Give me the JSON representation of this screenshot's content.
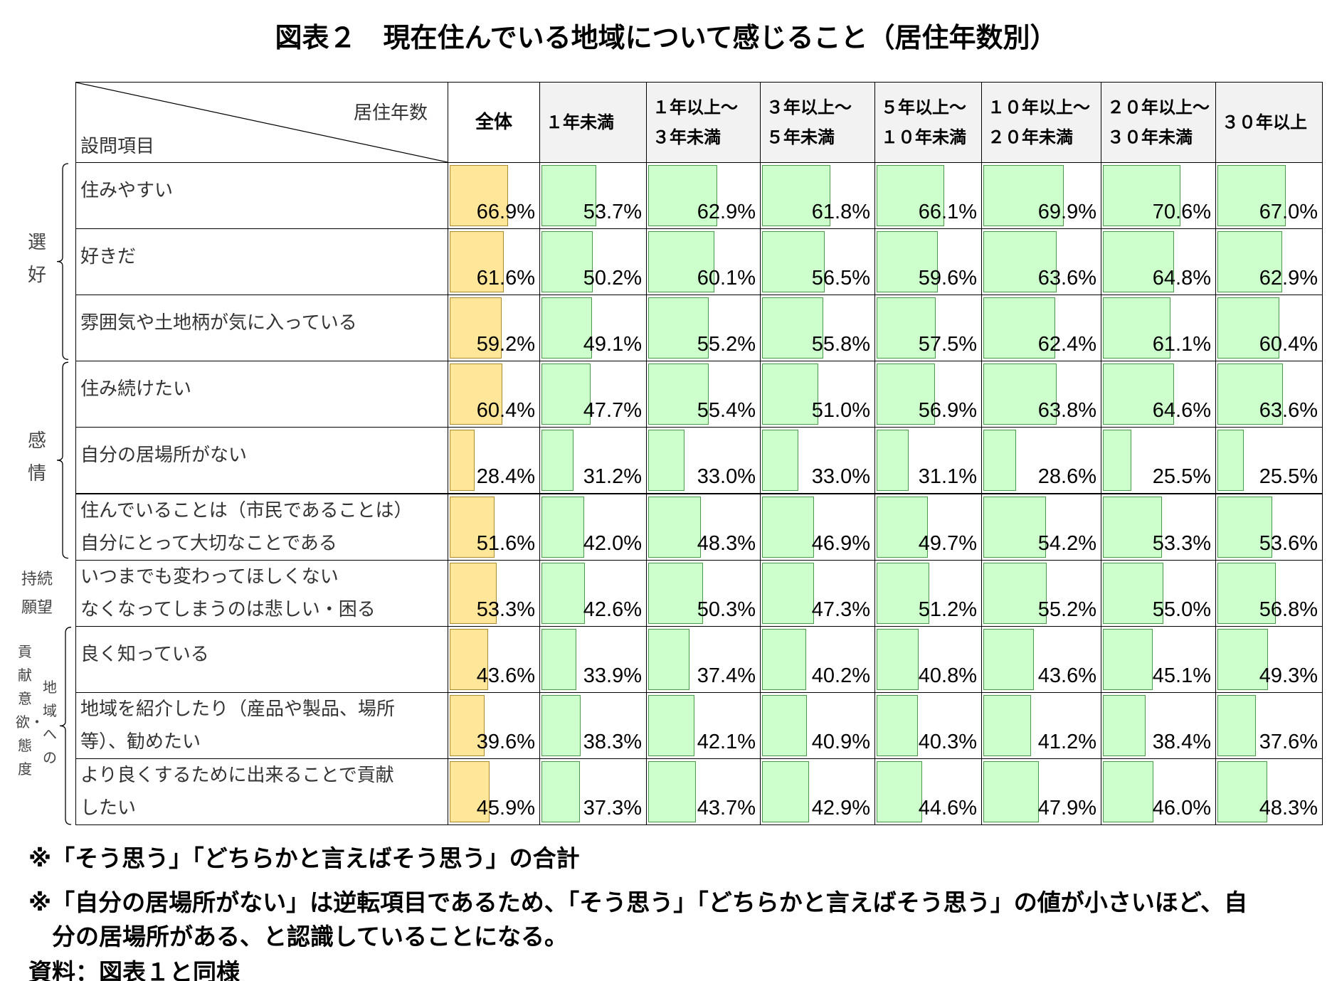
{
  "title": "図表２　現在住んでいる地域について感じること（居住年数別）",
  "chart_data": {
    "type": "table",
    "corner": {
      "top": "居住年数",
      "bottom": "設問項目"
    },
    "columns": [
      [
        "全体"
      ],
      [
        "１年未満"
      ],
      [
        "１年以上～",
        "３年未満"
      ],
      [
        "３年以上～",
        "５年未満"
      ],
      [
        "５年以上～",
        "１０年未満"
      ],
      [
        "１０年以上～",
        "２０年未満"
      ],
      [
        "２０年以上～",
        "３０年未満"
      ],
      [
        "３０年以上"
      ]
    ],
    "groups": [
      {
        "label": "選好",
        "rows": [
          0,
          2
        ]
      },
      {
        "label": "感情",
        "rows": [
          3,
          5
        ]
      },
      {
        "label": "持続願望",
        "rows": [
          6,
          6
        ]
      },
      {
        "label": "貢献意欲・態度",
        "sub": "地域への",
        "rows": [
          7,
          9
        ]
      }
    ],
    "rows": [
      {
        "label": [
          "住みやすい"
        ],
        "values": [
          66.9,
          53.7,
          62.9,
          61.8,
          66.1,
          69.9,
          70.6,
          67.0
        ]
      },
      {
        "label": [
          "好きだ"
        ],
        "values": [
          61.6,
          50.2,
          60.1,
          56.5,
          59.6,
          63.6,
          64.8,
          62.9
        ]
      },
      {
        "label": [
          "雰囲気や土地柄が気に入っている"
        ],
        "values": [
          59.2,
          49.1,
          55.2,
          55.8,
          57.5,
          62.4,
          61.1,
          60.4
        ]
      },
      {
        "label": [
          "住み続けたい"
        ],
        "values": [
          60.4,
          47.7,
          55.4,
          51.0,
          56.9,
          63.8,
          64.6,
          63.6
        ]
      },
      {
        "label": [
          "自分の居場所がない"
        ],
        "values": [
          28.4,
          31.2,
          33.0,
          33.0,
          31.1,
          28.6,
          25.5,
          25.5
        ]
      },
      {
        "label": [
          "住んでいることは（市民であることは）",
          "自分にとって大切なことである"
        ],
        "values": [
          51.6,
          42.0,
          48.3,
          46.9,
          49.7,
          54.2,
          53.3,
          53.6
        ]
      },
      {
        "label": [
          "いつまでも変わってほしくない",
          "なくなってしまうのは悲しい・困る"
        ],
        "values": [
          53.3,
          42.6,
          50.3,
          47.3,
          51.2,
          55.2,
          55.0,
          56.8
        ]
      },
      {
        "label": [
          "良く知っている"
        ],
        "values": [
          43.6,
          33.9,
          37.4,
          40.2,
          40.8,
          43.6,
          45.1,
          49.3
        ]
      },
      {
        "label": [
          "地域を紹介したり（産品や製品、場所",
          "等）、勧めたい"
        ],
        "values": [
          39.6,
          38.3,
          42.1,
          40.9,
          40.3,
          41.2,
          38.4,
          37.6
        ]
      },
      {
        "label": [
          "より良くするために出来ることで貢献",
          "したい"
        ],
        "values": [
          45.9,
          37.3,
          43.7,
          42.9,
          44.6,
          47.9,
          46.0,
          48.3
        ]
      }
    ],
    "unit": "%",
    "colors": {
      "all": "#ffe699",
      "group": "#ccffcc"
    }
  },
  "notes": [
    "※「そう思う」「どちらかと言えばそう思う」の合計",
    "※「自分の居場所がない」は逆転項目であるため、「そう思う」「どちらかと言えばそう思う」の値が小さいほど、自",
    "　分の居場所がある、と認識していることになる。",
    "資料：図表１と同様"
  ]
}
